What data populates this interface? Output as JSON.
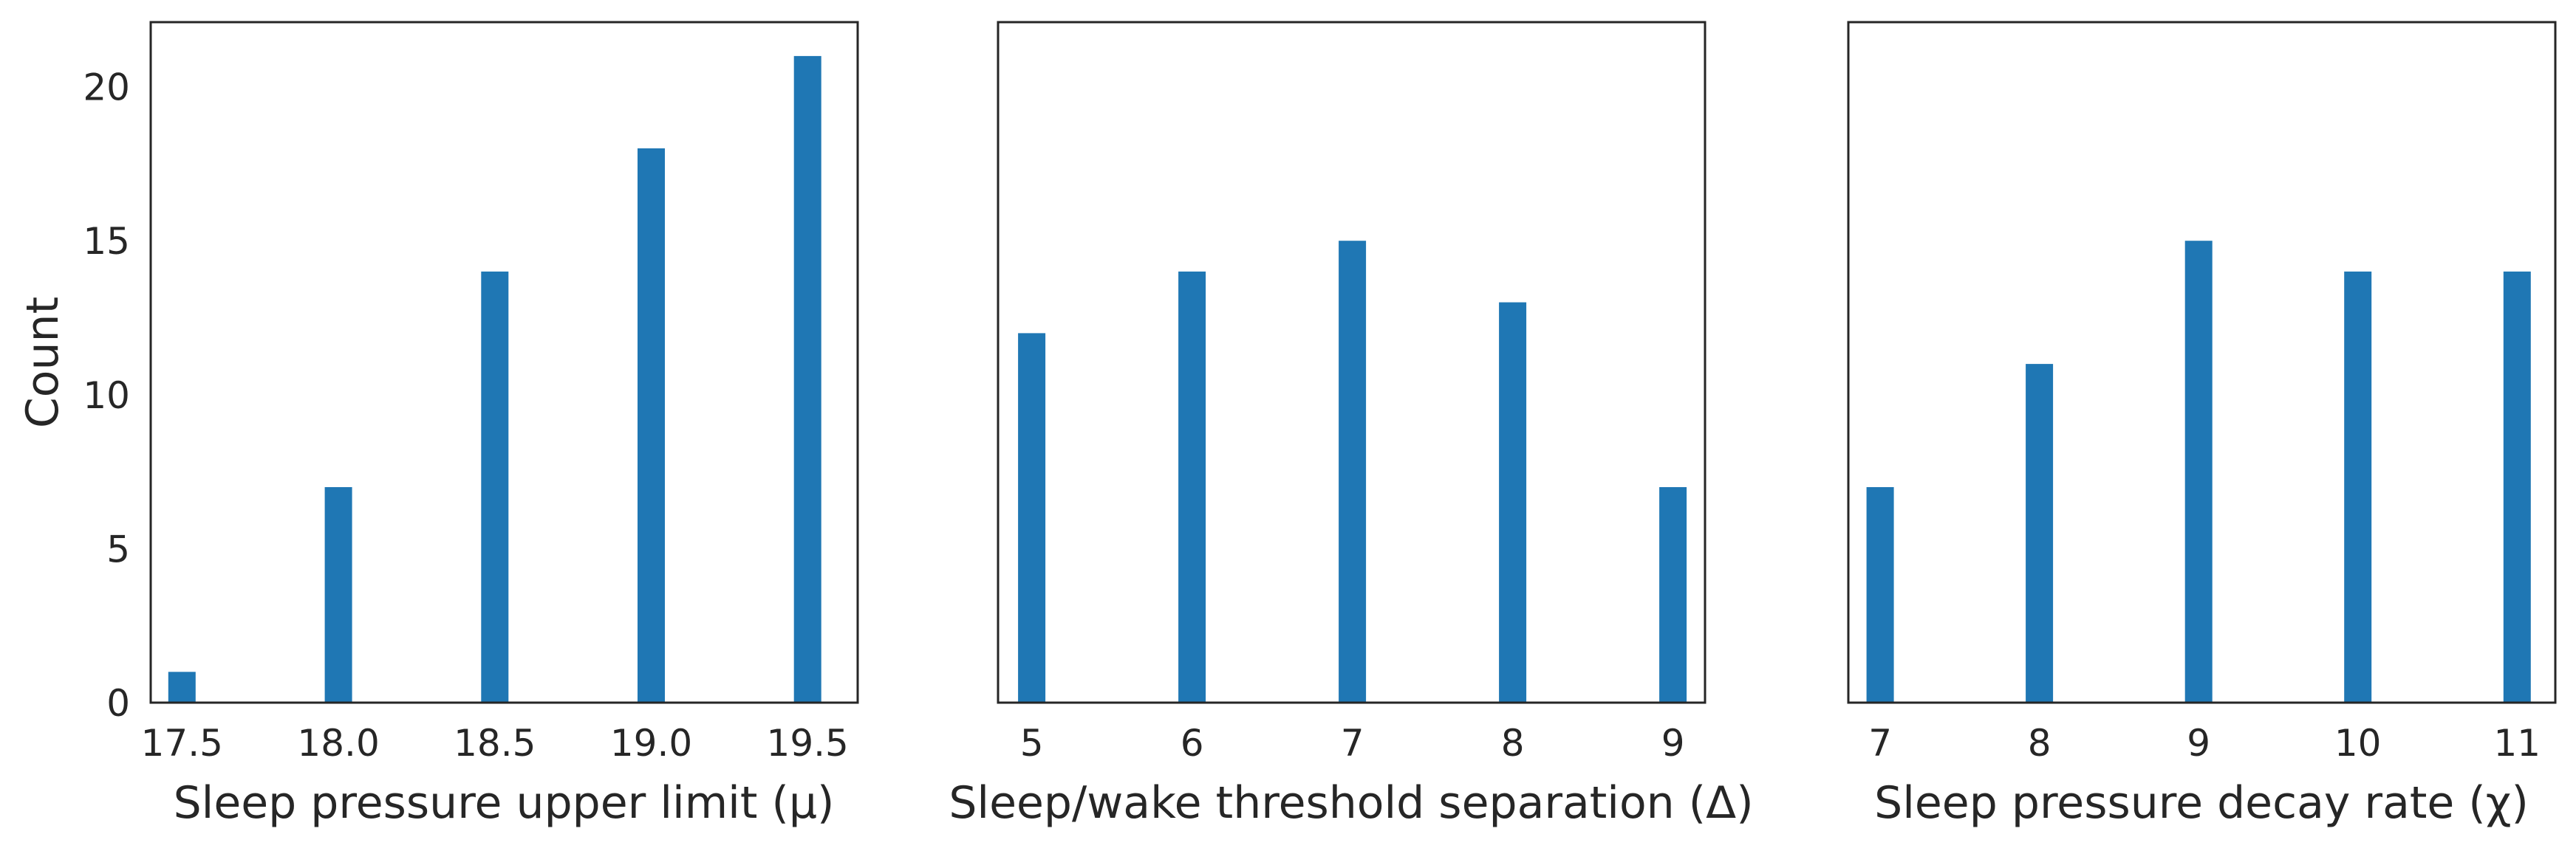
{
  "figure": {
    "bar_color": "#1f77b4",
    "frame_color": "#262626",
    "background": "#ffffff"
  },
  "chart_data": [
    {
      "type": "bar",
      "xlabel": "Sleep pressure upper limit  (μ)",
      "ylabel": "Count",
      "x_ticks": [
        "17.5",
        "18.0",
        "18.5",
        "19.0",
        "19.5"
      ],
      "y_ticks": [
        "0",
        "5",
        "10",
        "15",
        "20"
      ],
      "x": [
        17.5,
        18.0,
        18.5,
        19.0,
        19.5
      ],
      "values": [
        1,
        7,
        14,
        18,
        21
      ],
      "xlim": [
        17.4,
        19.66
      ],
      "ylim": [
        0,
        22.1
      ],
      "grid": false
    },
    {
      "type": "bar",
      "xlabel": "Sleep/wake threshold separation (Δ)",
      "ylabel": "",
      "x_ticks": [
        "5",
        "6",
        "7",
        "8",
        "9"
      ],
      "y_ticks": [],
      "x": [
        5,
        6,
        7,
        8,
        9
      ],
      "values": [
        12,
        14,
        15,
        13,
        7
      ],
      "xlim": [
        4.79,
        9.2
      ],
      "ylim": [
        0,
        22.1
      ],
      "grid": false
    },
    {
      "type": "bar",
      "xlabel": "Sleep pressure decay rate (χ)",
      "ylabel": "",
      "x_ticks": [
        "7",
        "8",
        "9",
        "10",
        "11"
      ],
      "y_ticks": [],
      "x": [
        7,
        8,
        9,
        10,
        11
      ],
      "values": [
        7,
        11,
        15,
        14,
        14
      ],
      "xlim": [
        6.8,
        11.24
      ],
      "ylim": [
        0,
        22.1
      ],
      "grid": false
    }
  ]
}
